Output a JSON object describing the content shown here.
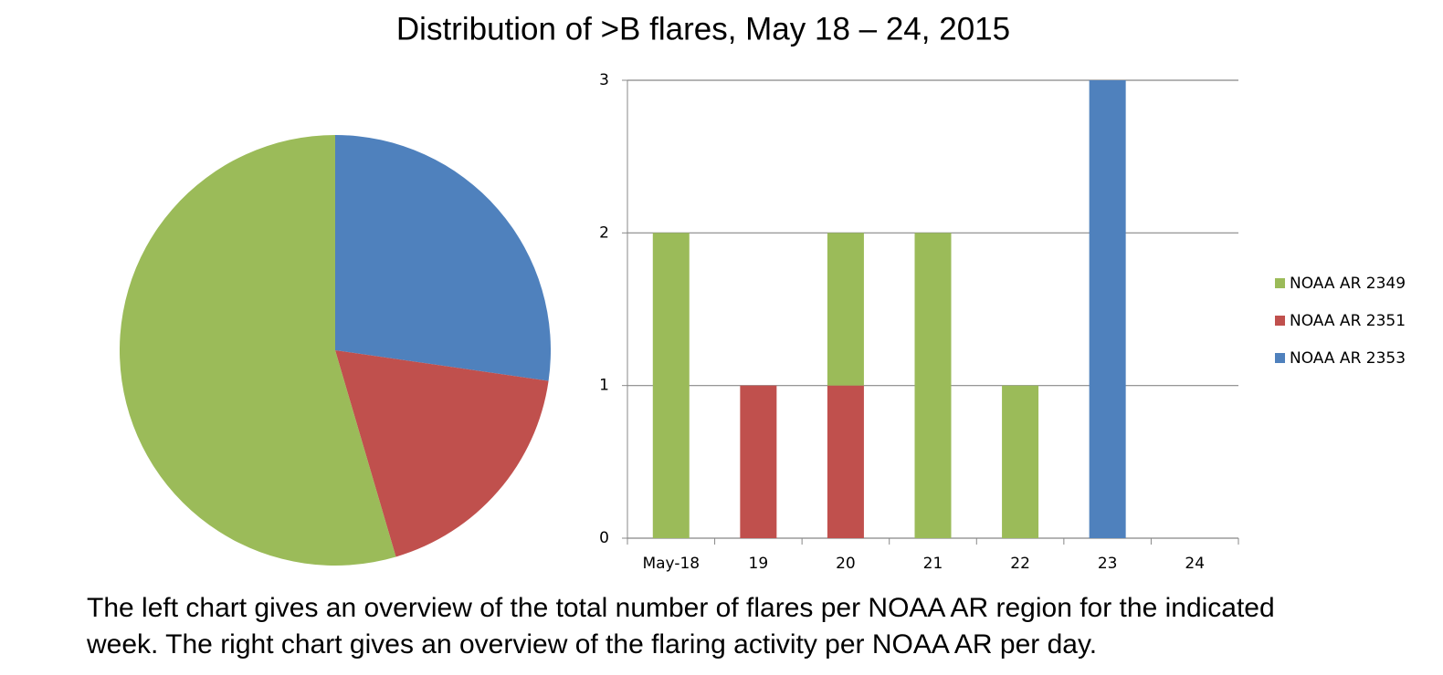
{
  "title": "Distribution of >B flares, May 18 – 24, 2015",
  "caption": [
    "The left chart gives an overview of the total number of flares per NOAA AR region for the indicated",
    "week. The right chart gives an overview of the flaring activity per NOAA AR per day."
  ],
  "chart_data": [
    {
      "type": "pie",
      "values": [
        3,
        2,
        6
      ],
      "colors": [
        "#4f81bd",
        "#c0504d",
        "#9bbb59"
      ]
    },
    {
      "type": "bar",
      "stacked": true,
      "categories": [
        "May-18",
        "19",
        "20",
        "21",
        "22",
        "23",
        "24"
      ],
      "series": [
        {
          "name": "NOAA AR 2349",
          "color": "#9bbb59",
          "values": [
            2,
            0,
            1,
            2,
            1,
            0,
            0
          ]
        },
        {
          "name": "NOAA AR 2351",
          "color": "#c0504d",
          "values": [
            0,
            1,
            1,
            0,
            0,
            0,
            0
          ]
        },
        {
          "name": "NOAA AR 2353",
          "color": "#4f81bd",
          "values": [
            0,
            0,
            0,
            0,
            0,
            3,
            0
          ]
        }
      ],
      "ylim": [
        0,
        3
      ],
      "yticks": [
        0,
        1,
        2,
        3
      ],
      "grid": true,
      "legend": "right"
    }
  ]
}
